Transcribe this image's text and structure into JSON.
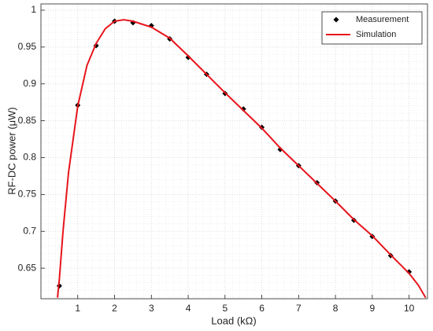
{
  "chart_data": {
    "type": "line",
    "xlabel": "Load (kΩ)",
    "ylabel": "RF-DC power (μW)",
    "xlim": [
      0,
      10.5
    ],
    "ylim": [
      0.6085,
      1.0085
    ],
    "xticks": [
      1,
      2,
      3,
      4,
      5,
      6,
      7,
      8,
      9,
      10
    ],
    "yticks": [
      0.65,
      0.7,
      0.75,
      0.8,
      0.85,
      0.9,
      0.95,
      1
    ],
    "grid": true,
    "legend": "upper right",
    "series": [
      {
        "name": "Measurement",
        "color": "#000000",
        "marker": "diamond",
        "line": false,
        "x": [
          0.5,
          1,
          1.5,
          2,
          2.5,
          3,
          3.5,
          4,
          4.5,
          5,
          5.5,
          6,
          6.5,
          7,
          7.5,
          8,
          8.5,
          9,
          9.5,
          10
        ],
        "values": [
          0.626,
          0.871,
          0.952,
          0.985,
          0.983,
          0.979,
          0.961,
          0.936,
          0.913,
          0.887,
          0.866,
          0.841,
          0.811,
          0.789,
          0.766,
          0.741,
          0.715,
          0.693,
          0.667,
          0.645
        ]
      },
      {
        "name": "Simulation",
        "color": "#e8141b",
        "marker": "none",
        "line": true,
        "x": [
          0.45,
          0.5,
          0.6,
          0.75,
          1,
          1.25,
          1.5,
          1.75,
          2,
          2.25,
          2.5,
          3,
          3.5,
          4,
          4.5,
          5,
          5.5,
          6,
          6.5,
          7,
          7.5,
          8,
          8.5,
          9,
          9.5,
          10,
          10.25,
          10.45
        ],
        "values": [
          0.61,
          0.635,
          0.7,
          0.78,
          0.87,
          0.925,
          0.955,
          0.975,
          0.985,
          0.987,
          0.985,
          0.977,
          0.962,
          0.938,
          0.913,
          0.888,
          0.864,
          0.84,
          0.813,
          0.789,
          0.765,
          0.741,
          0.716,
          0.694,
          0.668,
          0.643,
          0.627,
          0.61
        ]
      }
    ]
  }
}
